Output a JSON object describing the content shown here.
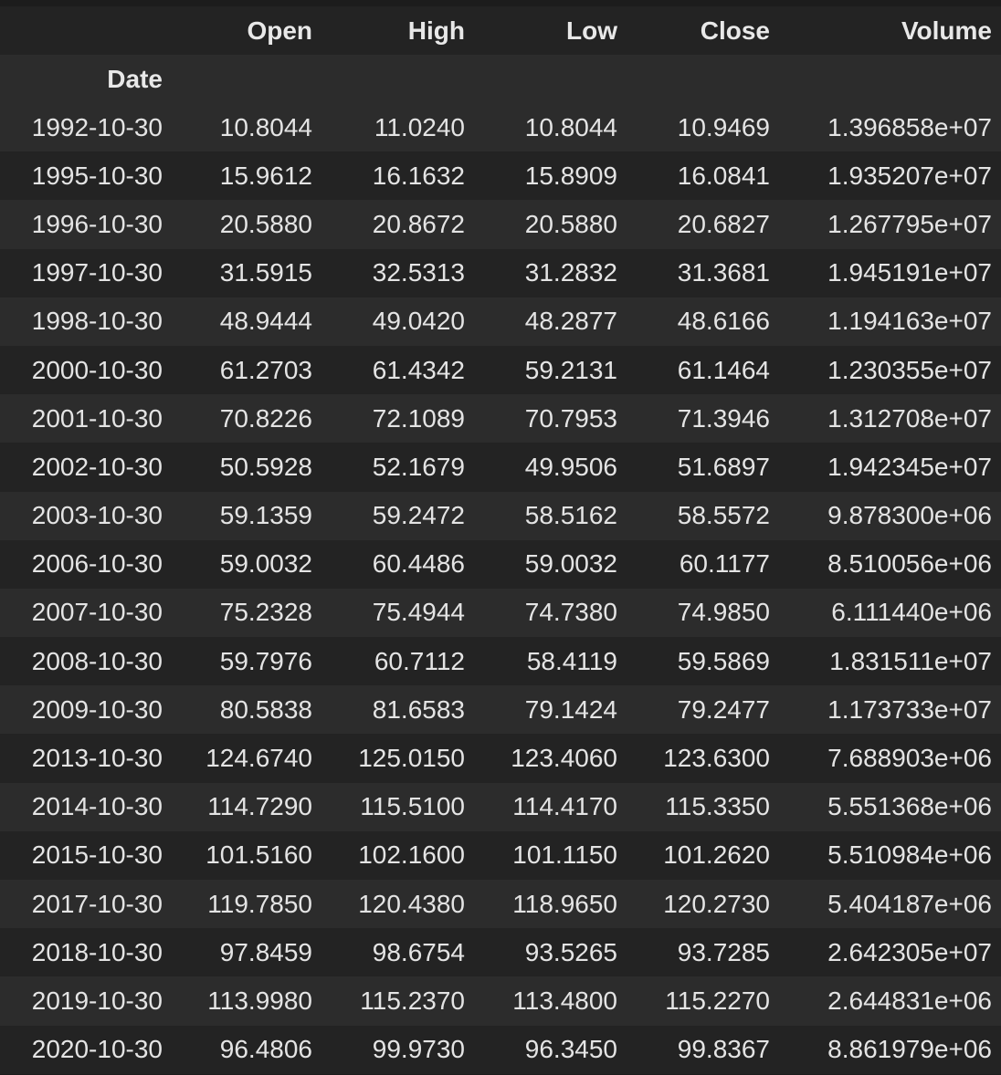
{
  "table": {
    "columns": [
      "Open",
      "High",
      "Low",
      "Close",
      "Volume"
    ],
    "index_name": "Date",
    "rows": [
      {
        "date": "1992-10-30",
        "values": [
          "10.8044",
          "11.0240",
          "10.8044",
          "10.9469",
          "1.396858e+07"
        ]
      },
      {
        "date": "1995-10-30",
        "values": [
          "15.9612",
          "16.1632",
          "15.8909",
          "16.0841",
          "1.935207e+07"
        ]
      },
      {
        "date": "1996-10-30",
        "values": [
          "20.5880",
          "20.8672",
          "20.5880",
          "20.6827",
          "1.267795e+07"
        ]
      },
      {
        "date": "1997-10-30",
        "values": [
          "31.5915",
          "32.5313",
          "31.2832",
          "31.3681",
          "1.945191e+07"
        ]
      },
      {
        "date": "1998-10-30",
        "values": [
          "48.9444",
          "49.0420",
          "48.2877",
          "48.6166",
          "1.194163e+07"
        ]
      },
      {
        "date": "2000-10-30",
        "values": [
          "61.2703",
          "61.4342",
          "59.2131",
          "61.1464",
          "1.230355e+07"
        ]
      },
      {
        "date": "2001-10-30",
        "values": [
          "70.8226",
          "72.1089",
          "70.7953",
          "71.3946",
          "1.312708e+07"
        ]
      },
      {
        "date": "2002-10-30",
        "values": [
          "50.5928",
          "52.1679",
          "49.9506",
          "51.6897",
          "1.942345e+07"
        ]
      },
      {
        "date": "2003-10-30",
        "values": [
          "59.1359",
          "59.2472",
          "58.5162",
          "58.5572",
          "9.878300e+06"
        ]
      },
      {
        "date": "2006-10-30",
        "values": [
          "59.0032",
          "60.4486",
          "59.0032",
          "60.1177",
          "8.510056e+06"
        ]
      },
      {
        "date": "2007-10-30",
        "values": [
          "75.2328",
          "75.4944",
          "74.7380",
          "74.9850",
          "6.111440e+06"
        ]
      },
      {
        "date": "2008-10-30",
        "values": [
          "59.7976",
          "60.7112",
          "58.4119",
          "59.5869",
          "1.831511e+07"
        ]
      },
      {
        "date": "2009-10-30",
        "values": [
          "80.5838",
          "81.6583",
          "79.1424",
          "79.2477",
          "1.173733e+07"
        ]
      },
      {
        "date": "2013-10-30",
        "values": [
          "124.6740",
          "125.0150",
          "123.4060",
          "123.6300",
          "7.688903e+06"
        ]
      },
      {
        "date": "2014-10-30",
        "values": [
          "114.7290",
          "115.5100",
          "114.4170",
          "115.3350",
          "5.551368e+06"
        ]
      },
      {
        "date": "2015-10-30",
        "values": [
          "101.5160",
          "102.1600",
          "101.1150",
          "101.2620",
          "5.510984e+06"
        ]
      },
      {
        "date": "2017-10-30",
        "values": [
          "119.7850",
          "120.4380",
          "118.9650",
          "120.2730",
          "5.404187e+06"
        ]
      },
      {
        "date": "2018-10-30",
        "values": [
          "97.8459",
          "98.6754",
          "93.5265",
          "93.7285",
          "2.642305e+07"
        ]
      },
      {
        "date": "2019-10-30",
        "values": [
          "113.9980",
          "115.2370",
          "113.4800",
          "115.2270",
          "2.644831e+06"
        ]
      },
      {
        "date": "2020-10-30",
        "values": [
          "96.4806",
          "99.9730",
          "96.3450",
          "99.8367",
          "8.861979e+06"
        ]
      }
    ]
  }
}
